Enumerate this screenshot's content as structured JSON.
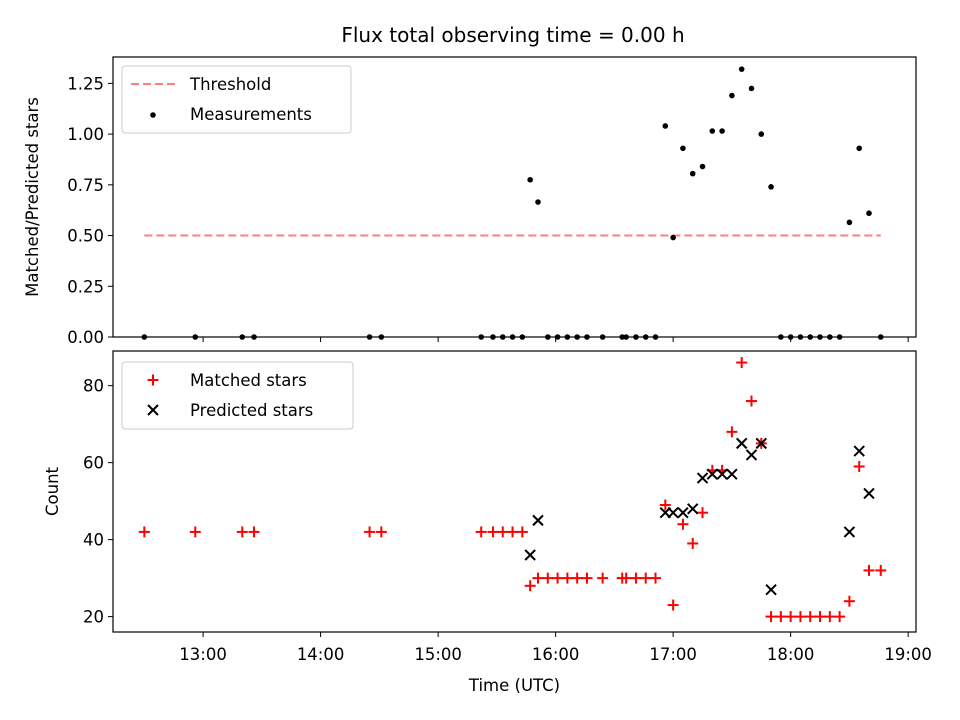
{
  "title": "Flux total observing time = 0.00 h",
  "chart_data": [
    {
      "type": "scatter",
      "ylabel": "Matched/Predicted stars",
      "xlabel": "",
      "xlim": [
        "12:14",
        "19:04"
      ],
      "ylim": [
        0,
        1.38
      ],
      "y_ticks": [
        0.0,
        0.25,
        0.5,
        0.75,
        1.0,
        1.25
      ],
      "y_tick_labels": [
        "0.00",
        "0.25",
        "0.50",
        "0.75",
        "1.00",
        "1.25"
      ],
      "legend": {
        "placement": "top-left",
        "entries": [
          "Threshold",
          "Measurements"
        ]
      },
      "threshold": {
        "name": "Threshold",
        "value": 0.5,
        "x": [
          "12:30",
          "18:46"
        ],
        "color": "#ff7f7f",
        "style": "dashed"
      },
      "measurements": {
        "name": "Measurements",
        "color": "#000000",
        "points": [
          [
            "12:30",
            0
          ],
          [
            "12:56",
            0
          ],
          [
            "13:20",
            0
          ],
          [
            "13:26",
            0
          ],
          [
            "14:25",
            0
          ],
          [
            "14:31",
            0
          ],
          [
            "15:22",
            0
          ],
          [
            "15:28",
            0
          ],
          [
            "15:33",
            0
          ],
          [
            "15:38",
            0
          ],
          [
            "15:43",
            0
          ],
          [
            "15:47",
            0.775
          ],
          [
            "15:51",
            0.665
          ],
          [
            "15:56",
            0
          ],
          [
            "16:01",
            0
          ],
          [
            "16:06",
            0
          ],
          [
            "16:11",
            0
          ],
          [
            "16:16",
            0
          ],
          [
            "16:24",
            0
          ],
          [
            "16:34",
            0
          ],
          [
            "16:36",
            0
          ],
          [
            "16:41",
            0
          ],
          [
            "16:46",
            0
          ],
          [
            "16:51",
            0
          ],
          [
            "16:56",
            1.04
          ],
          [
            "17:00",
            0.49
          ],
          [
            "17:05",
            0.93
          ],
          [
            "17:10",
            0.805
          ],
          [
            "17:15",
            0.84
          ],
          [
            "17:20",
            1.015
          ],
          [
            "17:25",
            1.015
          ],
          [
            "17:30",
            1.19
          ],
          [
            "17:35",
            1.32
          ],
          [
            "17:40",
            1.225
          ],
          [
            "17:45",
            1.0
          ],
          [
            "17:50",
            0.74
          ],
          [
            "17:55",
            0
          ],
          [
            "18:00",
            0
          ],
          [
            "18:05",
            0
          ],
          [
            "18:10",
            0
          ],
          [
            "18:15",
            0
          ],
          [
            "18:20",
            0
          ],
          [
            "18:25",
            0
          ],
          [
            "18:30",
            0.565
          ],
          [
            "18:35",
            0.93
          ],
          [
            "18:40",
            0.61
          ],
          [
            "18:46",
            0
          ]
        ]
      }
    },
    {
      "type": "scatter",
      "ylabel": "Count",
      "xlabel": "Time (UTC)",
      "xlim": [
        "12:14",
        "19:04"
      ],
      "ylim": [
        16,
        89
      ],
      "y_ticks": [
        20,
        40,
        60,
        80
      ],
      "y_tick_labels": [
        "20",
        "40",
        "60",
        "80"
      ],
      "x_ticks": [
        "13:00",
        "14:00",
        "15:00",
        "16:00",
        "17:00",
        "18:00",
        "19:00"
      ],
      "legend": {
        "placement": "top-left",
        "entries": [
          "Matched stars",
          "Predicted stars"
        ]
      },
      "series": [
        {
          "name": "Matched stars",
          "marker": "plus",
          "color": "#ff0000",
          "points": [
            [
              "12:30",
              42
            ],
            [
              "12:56",
              42
            ],
            [
              "13:20",
              42
            ],
            [
              "13:26",
              42
            ],
            [
              "14:25",
              42
            ],
            [
              "14:31",
              42
            ],
            [
              "15:22",
              42
            ],
            [
              "15:28",
              42
            ],
            [
              "15:33",
              42
            ],
            [
              "15:38",
              42
            ],
            [
              "15:43",
              42
            ],
            [
              "15:47",
              28
            ],
            [
              "15:51",
              30
            ],
            [
              "15:56",
              30
            ],
            [
              "16:01",
              30
            ],
            [
              "16:06",
              30
            ],
            [
              "16:11",
              30
            ],
            [
              "16:16",
              30
            ],
            [
              "16:24",
              30
            ],
            [
              "16:34",
              30
            ],
            [
              "16:36",
              30
            ],
            [
              "16:41",
              30
            ],
            [
              "16:46",
              30
            ],
            [
              "16:51",
              30
            ],
            [
              "16:56",
              49
            ],
            [
              "17:00",
              23
            ],
            [
              "17:05",
              44
            ],
            [
              "17:10",
              39
            ],
            [
              "17:15",
              47
            ],
            [
              "17:20",
              58
            ],
            [
              "17:25",
              58
            ],
            [
              "17:30",
              68
            ],
            [
              "17:35",
              86
            ],
            [
              "17:40",
              76
            ],
            [
              "17:45",
              65
            ],
            [
              "17:50",
              20
            ],
            [
              "17:55",
              20
            ],
            [
              "18:00",
              20
            ],
            [
              "18:05",
              20
            ],
            [
              "18:10",
              20
            ],
            [
              "18:15",
              20
            ],
            [
              "18:20",
              20
            ],
            [
              "18:25",
              20
            ],
            [
              "18:30",
              24
            ],
            [
              "18:35",
              59
            ],
            [
              "18:40",
              32
            ],
            [
              "18:46",
              32
            ]
          ]
        },
        {
          "name": "Predicted stars",
          "marker": "x",
          "color": "#000000",
          "points": [
            [
              "15:47",
              36
            ],
            [
              "15:51",
              45
            ],
            [
              "16:56",
              47
            ],
            [
              "17:00",
              47
            ],
            [
              "17:05",
              47
            ],
            [
              "17:10",
              48
            ],
            [
              "17:15",
              56
            ],
            [
              "17:20",
              57
            ],
            [
              "17:25",
              57
            ],
            [
              "17:30",
              57
            ],
            [
              "17:35",
              65
            ],
            [
              "17:40",
              62
            ],
            [
              "17:45",
              65
            ],
            [
              "17:50",
              27
            ],
            [
              "18:30",
              42
            ],
            [
              "18:35",
              63
            ],
            [
              "18:40",
              52
            ]
          ]
        }
      ]
    }
  ]
}
